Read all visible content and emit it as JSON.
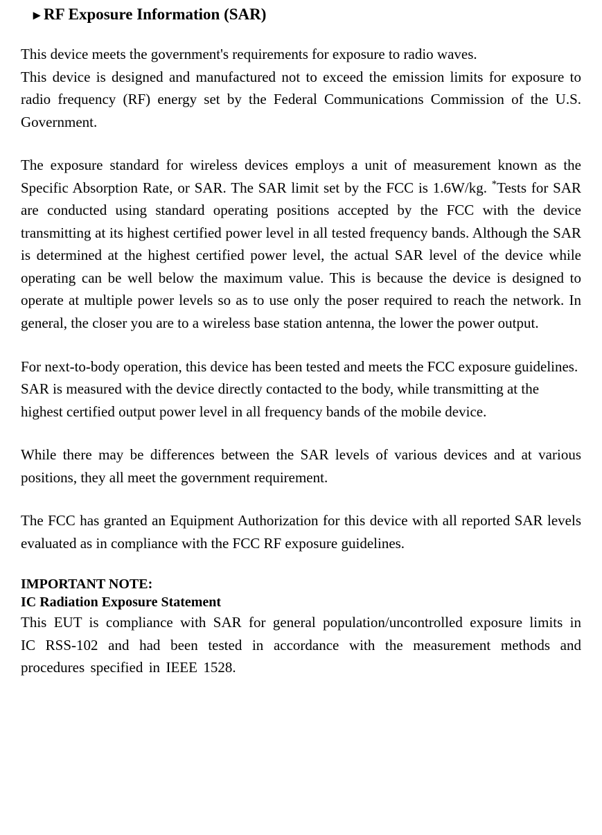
{
  "heading": "RF Exposure Information (SAR)",
  "para1a": "This device meets the government's requirements for exposure to radio waves.",
  "para1b": "This device is designed and manufactured not to exceed the emission limits for exposure to radio frequency (RF) energy set by the Federal Communications Commission of the U.S. Government.",
  "para2a": "The exposure standard for wireless devices employs a unit of measurement known as the Specific Absorption Rate, or SAR.  The SAR limit set by the FCC is 1.6W/kg. ",
  "para2b": "Tests for SAR are conducted using standard operating positions accepted by the FCC with the device transmitting at its highest certified power level in all tested frequency bands.  Although the SAR is determined at the highest certified power level, the actual SAR level of the device while operating can be well below the maximum value. This is because the device is designed to operate at multiple power levels so as to use only the poser required to reach the network.  In general, the closer you are to a wireless base station antenna, the lower the power output.",
  "para3": "For next-to-body operation, this device has been tested and meets the FCC exposure guidelines. SAR is measured with the device directly contacted to the body, while transmitting at the highest certified output power level in all frequency bands of the mobile device.",
  "para4": "While there may be differences between the SAR levels of various devices and at various positions, they all meet the government requirement.",
  "para5": "The FCC has granted an Equipment Authorization for this device with all reported SAR levels evaluated as in compliance with the FCC RF exposure guidelines.",
  "noteHeading": "IMPORTANT NOTE:",
  "noteSubheading": "IC Radiation Exposure Statement",
  "para6": "This EUT is compliance with SAR for general population/uncontrolled exposure limits in IC RSS-102 and had been tested in accordance with the measurement methods and procedures specified in IEEE 1528.",
  "bulletGlyph": "▸",
  "asterisk": "*",
  "colors": {
    "text": "#000000",
    "background": "#ffffff"
  }
}
